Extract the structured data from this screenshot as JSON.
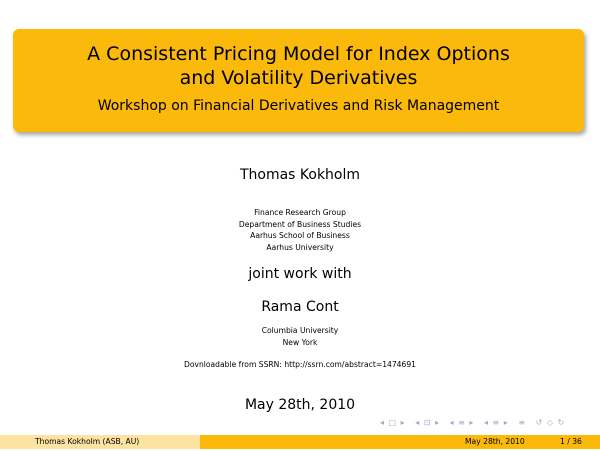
{
  "title": {
    "line1": "A Consistent Pricing Model for Index Options",
    "line2": "and Volatility Derivatives",
    "subtitle": "Workshop on Financial Derivatives and Risk Management"
  },
  "author": {
    "name": "Thomas Kokholm",
    "affiliations": [
      "Finance Research Group",
      "Department of Business Studies",
      "Aarhus School of Business",
      "Aarhus University"
    ]
  },
  "joint_work": "joint work with",
  "coauthor": {
    "name": "Rama Cont",
    "affiliations": [
      "Columbia University",
      "New York"
    ]
  },
  "download": "Dovnloadable from SSRN: http://ssrn.com/abstract=1474691",
  "date": "May 28th, 2010",
  "navigation": {
    "icons": [
      "◂ □ ▸",
      "◂ ⊡ ▸",
      "◂ ≡ ▸",
      "◂ ≡ ▸",
      "≡",
      "↺ ◇ ↻"
    ]
  },
  "footer": {
    "author": "Thomas Kokholm  (ASB, AU)",
    "date": "May 28th, 2010",
    "page": "1 / 36"
  }
}
